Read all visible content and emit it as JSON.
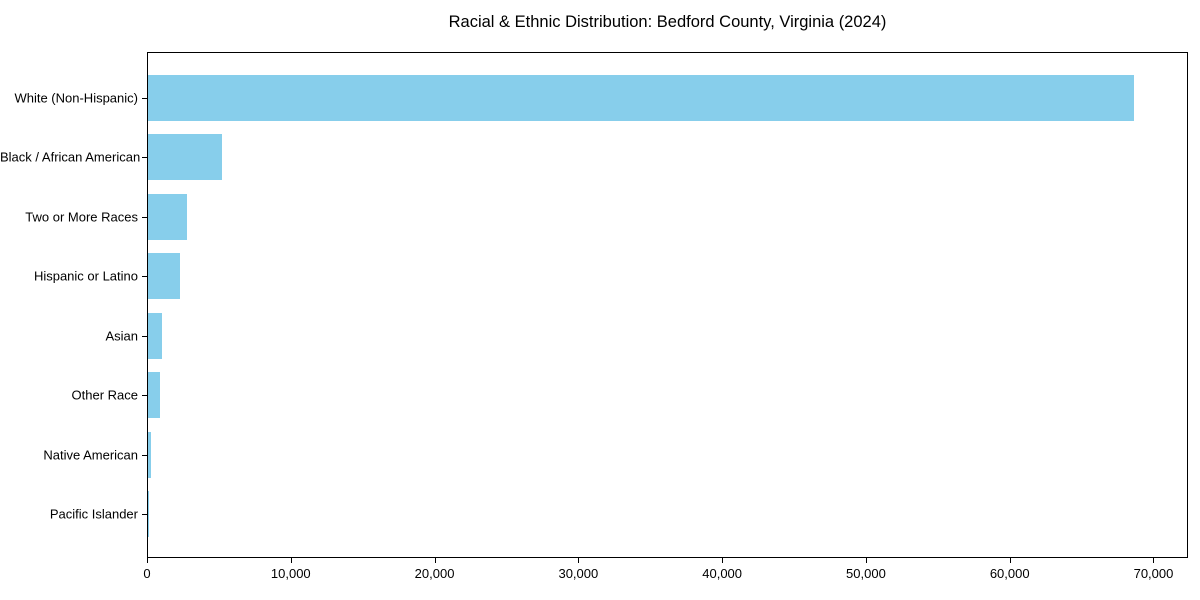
{
  "chart_data": {
    "type": "bar",
    "orientation": "horizontal",
    "title": "Racial & Ethnic Distribution: Bedford County, Virginia (2024)",
    "categories": [
      "White (Non-Hispanic)",
      "Black / African American",
      "Two or More Races",
      "Hispanic or Latino",
      "Asian",
      "Other Race",
      "Native American",
      "Pacific Islander"
    ],
    "values": [
      68700,
      5150,
      2750,
      2250,
      950,
      850,
      220,
      40
    ],
    "bar_color": "#87CEEB",
    "xlabel": "",
    "ylabel": "",
    "xlim": [
      0,
      72400
    ],
    "x_ticks": [
      0,
      10000,
      20000,
      30000,
      40000,
      50000,
      60000,
      70000
    ],
    "x_tick_labels": [
      "0",
      "10,000",
      "20,000",
      "30,000",
      "40,000",
      "50,000",
      "60,000",
      "70,000"
    ],
    "grid": false,
    "legend": "none",
    "value_order": "descending, largest bar at top"
  }
}
